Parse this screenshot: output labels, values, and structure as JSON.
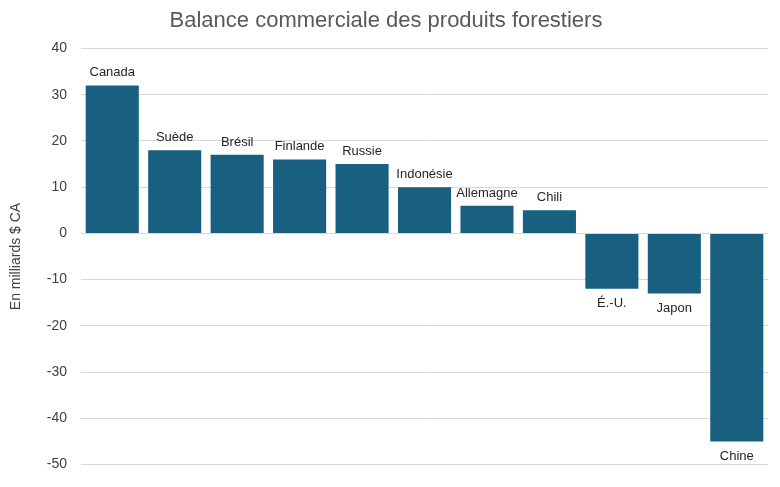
{
  "chart_data": {
    "type": "bar",
    "title": "Balance commerciale des produits forestiers",
    "y_label": "En milliards $ CA",
    "categories": [
      "Canada",
      "Suède",
      "Brésil",
      "Finlande",
      "Russie",
      "Indonésie",
      "Allemagne",
      "Chili",
      "É.-U.",
      "Japon",
      "Chine"
    ],
    "values": [
      32,
      18,
      17,
      16,
      15,
      10,
      6,
      5,
      -12,
      -13,
      -45
    ],
    "color": "#185f80",
    "ylim": [
      -50,
      40
    ],
    "yticks": [
      -50,
      -40,
      -30,
      -20,
      -10,
      0,
      10,
      20,
      30,
      40
    ],
    "grid": true,
    "tick_labels": "y"
  }
}
